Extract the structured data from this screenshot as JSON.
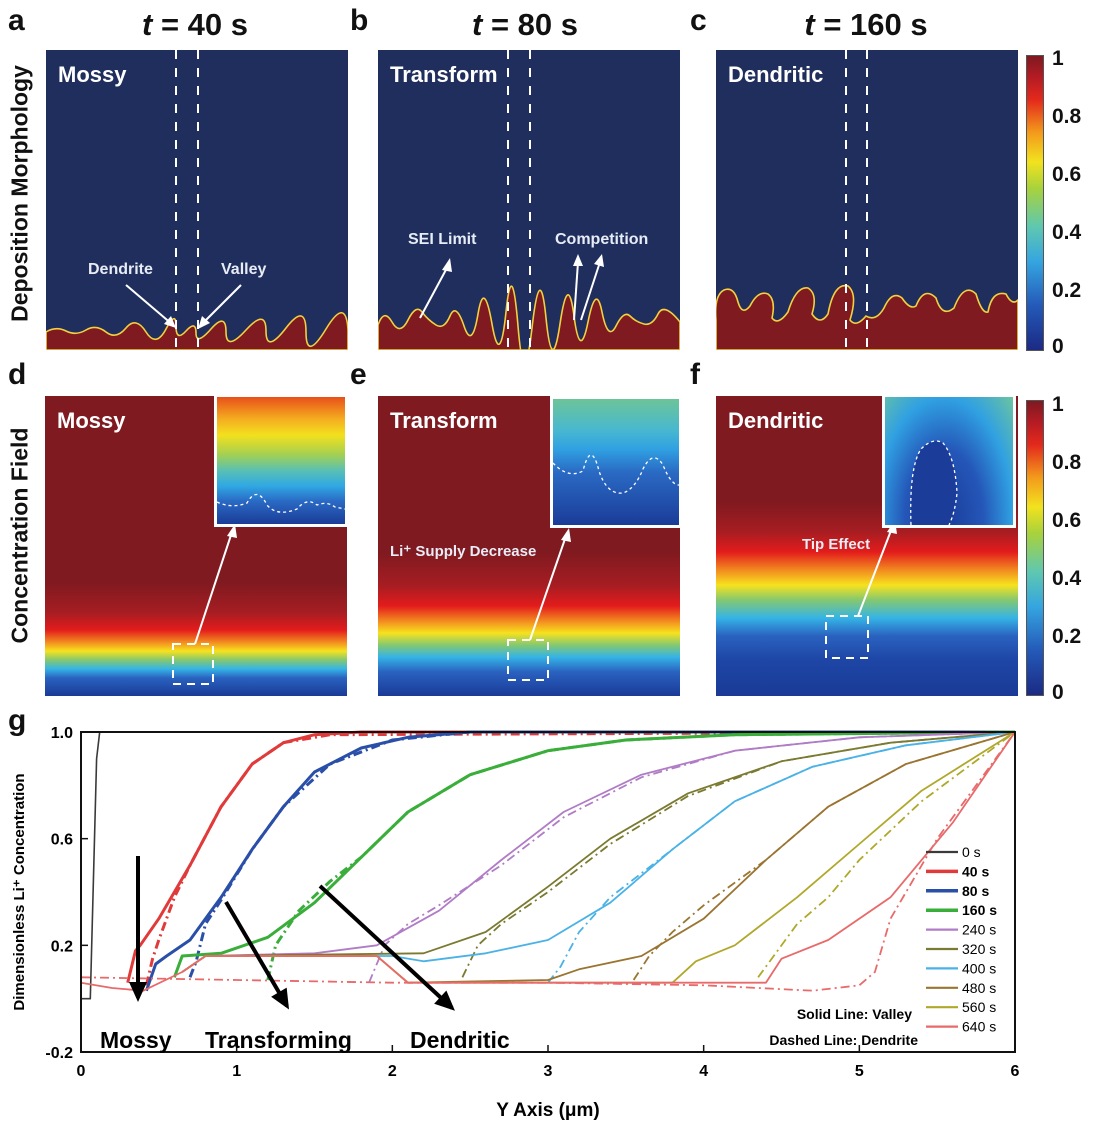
{
  "figure": {
    "row_labels": {
      "morphology": "Deposition Morphology",
      "concentration": "Concentration Field"
    },
    "panels_top": [
      {
        "letter": "a",
        "time_prefix": "t",
        "time_suffix": " = 40 s",
        "label": "Mossy",
        "annotations": [
          "Dendrite",
          "Valley"
        ]
      },
      {
        "letter": "b",
        "time_prefix": "t",
        "time_suffix": " = 80 s",
        "label": "Transform",
        "annotations": [
          "SEI Limit",
          "Competition"
        ]
      },
      {
        "letter": "c",
        "time_prefix": "t",
        "time_suffix": " = 160 s",
        "label": "Dendritic",
        "annotations": []
      }
    ],
    "panels_mid": [
      {
        "letter": "d",
        "label": "Mossy",
        "annotation": ""
      },
      {
        "letter": "e",
        "label": "Transform",
        "annotation": "Li⁺ Supply Decrease"
      },
      {
        "letter": "f",
        "label": "Dendritic",
        "annotation": "Tip Effect"
      }
    ],
    "colorbar": {
      "ticks": [
        "1",
        "0.8",
        "0.6",
        "0.4",
        "0.2",
        "0"
      ],
      "range": [
        0,
        1
      ]
    },
    "panel_g_letter": "g"
  },
  "chart_data": {
    "type": "line",
    "title": "",
    "xlabel": "Y Axis (μm)",
    "ylabel": "Dimensionless Li⁺ Concentration",
    "xlim": [
      0,
      6
    ],
    "ylim": [
      -0.2,
      1.0
    ],
    "xticks": [
      "0",
      "1",
      "2",
      "3",
      "4",
      "5",
      "6"
    ],
    "yticks": [
      "1.0",
      "0.6",
      "0.2",
      "-0.2"
    ],
    "ytick_values": [
      1.0,
      0.6,
      0.2,
      -0.2
    ],
    "legend_position": "bottom-right",
    "legend_notes": [
      "Solid Line: Valley",
      "Dashed Line: Dendrite"
    ],
    "annotations": [
      "Mossy",
      "Transforming",
      "Dendritic"
    ],
    "series": [
      {
        "name": "0 s",
        "color": "#3a3a3a",
        "bold": false,
        "width": 1.6,
        "valley_x": [
          0,
          0.06,
          0.1,
          0.12,
          6
        ],
        "valley_y": [
          0.0,
          0.0,
          0.9,
          1.0,
          1.0
        ],
        "dendrite_x": [],
        "dendrite_y": []
      },
      {
        "name": "40 s",
        "color": "#e03a3a",
        "bold": true,
        "width": 3,
        "valley_x": [
          0.3,
          0.35,
          0.38,
          0.5,
          0.7,
          0.9,
          1.1,
          1.3,
          1.5,
          1.8,
          6
        ],
        "valley_y": [
          0.06,
          0.18,
          0.2,
          0.3,
          0.5,
          0.72,
          0.88,
          0.96,
          0.99,
          1.0,
          1.0
        ],
        "dendrite_x": [
          0.42,
          0.46,
          0.5,
          0.6,
          0.7,
          0.9,
          1.1,
          1.3,
          1.6,
          6
        ],
        "dendrite_y": [
          0.05,
          0.15,
          0.22,
          0.38,
          0.5,
          0.72,
          0.88,
          0.96,
          0.99,
          1.0
        ]
      },
      {
        "name": "80 s",
        "color": "#2a4fa8",
        "bold": true,
        "width": 3,
        "valley_x": [
          0.42,
          0.48,
          0.55,
          0.7,
          0.9,
          1.1,
          1.3,
          1.5,
          1.8,
          2.1,
          2.5,
          6
        ],
        "valley_y": [
          0.03,
          0.13,
          0.16,
          0.22,
          0.38,
          0.56,
          0.72,
          0.85,
          0.94,
          0.98,
          1.0,
          1.0
        ],
        "dendrite_x": [
          0.7,
          0.74,
          0.8,
          0.9,
          1.1,
          1.3,
          1.6,
          2.0,
          2.5,
          6
        ],
        "dendrite_y": [
          0.08,
          0.14,
          0.28,
          0.37,
          0.56,
          0.72,
          0.88,
          0.97,
          1.0,
          1.0
        ]
      },
      {
        "name": "160 s",
        "color": "#3aae3a",
        "bold": true,
        "width": 3,
        "valley_x": [
          0.6,
          0.65,
          0.9,
          1.2,
          1.5,
          1.8,
          2.1,
          2.5,
          3.0,
          3.5,
          4.2,
          6
        ],
        "valley_y": [
          0.08,
          0.16,
          0.17,
          0.23,
          0.36,
          0.53,
          0.7,
          0.84,
          0.93,
          0.97,
          0.99,
          1.0
        ],
        "dendrite_x": [
          1.2,
          1.25,
          1.4,
          1.6,
          1.8,
          2.1,
          2.5,
          3.0,
          3.5,
          4.2,
          6
        ],
        "dendrite_y": [
          0.07,
          0.2,
          0.33,
          0.44,
          0.53,
          0.7,
          0.84,
          0.93,
          0.97,
          0.99,
          1.0
        ]
      },
      {
        "name": "240 s",
        "color": "#b07cc6",
        "bold": false,
        "width": 1.8,
        "valley_x": [
          0.65,
          0.8,
          1.5,
          1.9,
          2.3,
          2.7,
          3.1,
          3.6,
          4.2,
          5.0,
          6
        ],
        "valley_y": [
          0.1,
          0.16,
          0.17,
          0.2,
          0.33,
          0.52,
          0.7,
          0.84,
          0.93,
          0.98,
          1.0
        ],
        "dendrite_x": [
          1.85,
          1.95,
          2.1,
          2.3,
          2.7,
          3.1,
          3.6,
          4.2,
          5.0,
          6
        ],
        "dendrite_y": [
          0.06,
          0.2,
          0.28,
          0.35,
          0.5,
          0.68,
          0.83,
          0.93,
          0.98,
          1.0
        ]
      },
      {
        "name": "320 s",
        "color": "#7a7a30",
        "bold": false,
        "width": 1.8,
        "valley_x": [
          0.65,
          0.8,
          2.2,
          2.6,
          3.0,
          3.4,
          3.9,
          4.5,
          5.2,
          6
        ],
        "valley_y": [
          0.1,
          0.16,
          0.17,
          0.25,
          0.42,
          0.6,
          0.77,
          0.89,
          0.96,
          1.0
        ],
        "dendrite_x": [
          2.45,
          2.55,
          2.7,
          3.0,
          3.4,
          3.9,
          4.5,
          5.2,
          6
        ],
        "dendrite_y": [
          0.08,
          0.2,
          0.28,
          0.4,
          0.58,
          0.76,
          0.89,
          0.96,
          1.0
        ]
      },
      {
        "name": "400 s",
        "color": "#4ab2e6",
        "bold": false,
        "width": 1.8,
        "valley_x": [
          0.65,
          0.8,
          2.0,
          2.2,
          2.6,
          3.0,
          3.4,
          3.8,
          4.2,
          4.7,
          5.3,
          6
        ],
        "valley_y": [
          0.1,
          0.16,
          0.16,
          0.14,
          0.17,
          0.22,
          0.36,
          0.56,
          0.74,
          0.87,
          0.95,
          1.0
        ],
        "dendrite_x": [
          3.0,
          3.08,
          3.2,
          3.4,
          3.8,
          4.2,
          4.7,
          5.3,
          6
        ],
        "dendrite_y": [
          0.06,
          0.12,
          0.25,
          0.38,
          0.56,
          0.74,
          0.87,
          0.95,
          1.0
        ]
      },
      {
        "name": "480 s",
        "color": "#9a7430",
        "bold": false,
        "width": 1.8,
        "valley_x": [
          0.65,
          0.8,
          1.9,
          2.1,
          3.0,
          3.2,
          3.6,
          4.0,
          4.4,
          4.8,
          5.3,
          6
        ],
        "valley_y": [
          0.1,
          0.16,
          0.16,
          0.06,
          0.07,
          0.11,
          0.16,
          0.3,
          0.52,
          0.72,
          0.88,
          1.0
        ],
        "dendrite_x": [
          3.55,
          3.65,
          3.8,
          4.0,
          4.4,
          4.8,
          5.3,
          6
        ],
        "dendrite_y": [
          0.07,
          0.16,
          0.25,
          0.35,
          0.52,
          0.72,
          0.88,
          1.0
        ]
      },
      {
        "name": "560 s",
        "color": "#b0a82a",
        "bold": false,
        "width": 1.8,
        "valley_x": [
          0.65,
          0.8,
          1.9,
          2.1,
          3.8,
          3.95,
          4.2,
          4.6,
          5.0,
          5.4,
          6
        ],
        "valley_y": [
          0.1,
          0.16,
          0.16,
          0.06,
          0.06,
          0.14,
          0.2,
          0.38,
          0.58,
          0.78,
          1.0
        ],
        "dendrite_x": [
          4.35,
          4.45,
          4.6,
          4.8,
          5.0,
          5.4,
          6
        ],
        "dendrite_y": [
          0.08,
          0.16,
          0.28,
          0.38,
          0.52,
          0.74,
          1.0
        ]
      },
      {
        "name": "640 s",
        "color": "#e86a6a",
        "bold": false,
        "width": 1.8,
        "valley_x": [
          0.0,
          0.2,
          0.4,
          0.65,
          0.8,
          1.9,
          2.1,
          3.0,
          4.4,
          4.5,
          4.8,
          5.2,
          5.6,
          6
        ],
        "valley_y": [
          0.06,
          0.04,
          0.03,
          0.1,
          0.16,
          0.16,
          0.06,
          0.06,
          0.06,
          0.15,
          0.22,
          0.38,
          0.66,
          1.0
        ],
        "dendrite_x": [
          0.0,
          1.0,
          2.0,
          3.0,
          4.0,
          4.7,
          5.0,
          5.1,
          5.2,
          5.5,
          6
        ],
        "dendrite_y": [
          0.08,
          0.07,
          0.06,
          0.06,
          0.05,
          0.03,
          0.05,
          0.1,
          0.3,
          0.6,
          1.0
        ]
      }
    ]
  }
}
